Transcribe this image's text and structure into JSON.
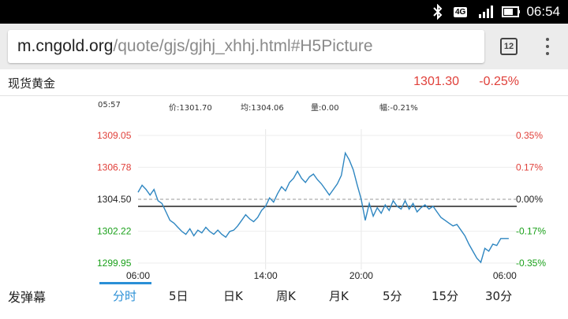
{
  "status_bar": {
    "network": "4G",
    "time": "06:54"
  },
  "browser": {
    "url_host": "m.cngold.org",
    "url_path": "/quote/gjs/gjhj_xhhj.html#H5Picture",
    "tab_count": "12"
  },
  "quote": {
    "name": "现货黄金",
    "price": "1301.30",
    "change": "-0.25%"
  },
  "info": {
    "time": "05:57",
    "price": "价:1301.70",
    "avg": "均:1304.06",
    "volume": "量:0.00",
    "amplitude": "幅:-0.21%"
  },
  "colors": {
    "up": "#e0403a",
    "down": "#1aa01a",
    "line": "#2e86c1",
    "accent": "#2a8fd6"
  },
  "chart_data": {
    "type": "line",
    "base": 1304.5,
    "ylim": [
      1299.95,
      1309.05
    ],
    "y_ticks_left": [
      "1309.05",
      "1306.78",
      "1304.50",
      "1302.22",
      "1299.95"
    ],
    "y_ticks_right": [
      "0.35%",
      "0.17%",
      "0.00%",
      "-0.17%",
      "-0.35%"
    ],
    "x_ticks": [
      "06:00",
      "14:00",
      "20:00",
      "06:00"
    ],
    "x_tick_index": [
      0,
      32,
      56,
      92
    ],
    "x_count": 96,
    "series": [
      {
        "values": [
          1305.0,
          1305.5,
          1305.2,
          1304.8,
          1305.2,
          1304.4,
          1304.2,
          1303.6,
          1303.0,
          1302.8,
          1302.5,
          1302.2,
          1302.0,
          1302.4,
          1301.9,
          1302.3,
          1302.1,
          1302.5,
          1302.2,
          1302.0,
          1302.3,
          1302.0,
          1301.8,
          1302.2,
          1302.3,
          1302.6,
          1303.0,
          1303.4,
          1303.1,
          1302.9,
          1303.2,
          1303.7,
          1304.0,
          1304.6,
          1304.3,
          1304.9,
          1305.4,
          1305.1,
          1305.7,
          1306.0,
          1306.5,
          1306.0,
          1305.7,
          1306.1,
          1306.3,
          1305.9,
          1305.6,
          1305.2,
          1304.8,
          1305.2,
          1305.6,
          1306.2,
          1307.8,
          1307.3,
          1306.6,
          1305.5,
          1304.5,
          1303.0,
          1304.2,
          1303.3,
          1303.9,
          1303.5,
          1304.1,
          1303.7,
          1304.4,
          1304.0,
          1303.8,
          1304.4,
          1303.8,
          1304.2,
          1303.6,
          1303.9,
          1304.1,
          1303.8,
          1304.0,
          1303.6,
          1303.2,
          1303.0,
          1302.8,
          1302.6,
          1302.7,
          1302.3,
          1301.9,
          1301.3,
          1300.8,
          1300.3,
          1300.0,
          1301.0,
          1300.8,
          1301.3,
          1301.2,
          1301.7,
          1301.7,
          1301.7
        ]
      }
    ]
  },
  "tabs": {
    "danmu": "发弹幕",
    "items": [
      "分时",
      "5日",
      "日K",
      "周K",
      "月K",
      "5分",
      "15分",
      "30分"
    ]
  }
}
